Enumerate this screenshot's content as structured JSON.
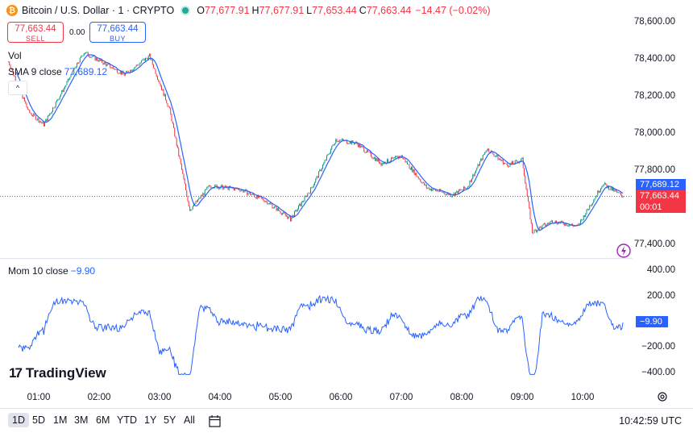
{
  "header": {
    "symbol_title": "Bitcoin / U.S. Dollar · 1 · CRYPTO",
    "coin_glyph": "₿",
    "ohlc": [
      {
        "label": "O",
        "value": "77,677.91"
      },
      {
        "label": "H",
        "value": "77,677.91"
      },
      {
        "label": "L",
        "value": "77,653.44"
      },
      {
        "label": "C",
        "value": "77,663.44"
      }
    ],
    "change": "−14.47 (−0.02%)"
  },
  "trade": {
    "sell_price": "77,663.44",
    "sell_label": "SELL",
    "spread": "0.00",
    "buy_price": "77,663.44",
    "buy_label": "BUY"
  },
  "indicators": {
    "vol_label": "Vol",
    "sma_label": "SMA 9 close",
    "sma_value": "77,689.12",
    "collapse_glyph": "^"
  },
  "momentum": {
    "label": "Mom 10 close",
    "value": "−9.90",
    "tag": "−9.90"
  },
  "price_axis": {
    "ticks": [
      "78,600.00",
      "78,400.00",
      "78,200.00",
      "78,000.00",
      "77,800.00",
      "77,400.00"
    ],
    "sma_tag": "77,689.12",
    "price_tag": "77,663.44",
    "countdown": "00:01"
  },
  "mom_axis": {
    "ticks": [
      "400.00",
      "200.00",
      "−200.00",
      "−400.00"
    ]
  },
  "time_axis": {
    "ticks": [
      "01:00",
      "02:00",
      "03:00",
      "04:00",
      "05:00",
      "06:00",
      "07:00",
      "08:00",
      "09:00",
      "10:00"
    ]
  },
  "brand": {
    "logo_glyph": "17",
    "name": "TradingView"
  },
  "ranges": [
    "1D",
    "5D",
    "1M",
    "3M",
    "6M",
    "YTD",
    "1Y",
    "5Y",
    "All"
  ],
  "clock": "10:42:59 UTC",
  "colors": {
    "up": "#089981",
    "down": "#f23645",
    "sma": "#2962ff",
    "momentum": "#2962ff"
  },
  "chart_data": {
    "type": "candlestick",
    "interval": "1 minute",
    "price_range": [
      77400,
      78600
    ],
    "sma_period": 9,
    "momentum_period": 10,
    "momentum_range": [
      -400,
      400
    ],
    "last_close": 77663.44,
    "last_sma": 77689.12,
    "last_momentum": -9.9,
    "approx_close_path": [
      {
        "time": "00:30",
        "price": 78390
      },
      {
        "time": "00:50",
        "price": 78120
      },
      {
        "time": "01:05",
        "price": 78050
      },
      {
        "time": "01:45",
        "price": 78440
      },
      {
        "time": "02:25",
        "price": 78320
      },
      {
        "time": "02:50",
        "price": 78420
      },
      {
        "time": "03:10",
        "price": 78130
      },
      {
        "time": "03:30",
        "price": 77590
      },
      {
        "time": "03:50",
        "price": 77720
      },
      {
        "time": "04:20",
        "price": 77700
      },
      {
        "time": "04:45",
        "price": 77640
      },
      {
        "time": "05:10",
        "price": 77540
      },
      {
        "time": "05:30",
        "price": 77700
      },
      {
        "time": "05:55",
        "price": 77970
      },
      {
        "time": "06:15",
        "price": 77950
      },
      {
        "time": "06:40",
        "price": 77840
      },
      {
        "time": "07:00",
        "price": 77880
      },
      {
        "time": "07:25",
        "price": 77710
      },
      {
        "time": "07:50",
        "price": 77670
      },
      {
        "time": "08:05",
        "price": 77710
      },
      {
        "time": "08:25",
        "price": 77920
      },
      {
        "time": "08:45",
        "price": 77830
      },
      {
        "time": "09:00",
        "price": 77860
      },
      {
        "time": "09:10",
        "price": 77470
      },
      {
        "time": "09:30",
        "price": 77530
      },
      {
        "time": "09:55",
        "price": 77500
      },
      {
        "time": "10:20",
        "price": 77730
      },
      {
        "time": "10:40",
        "price": 77663
      }
    ]
  }
}
